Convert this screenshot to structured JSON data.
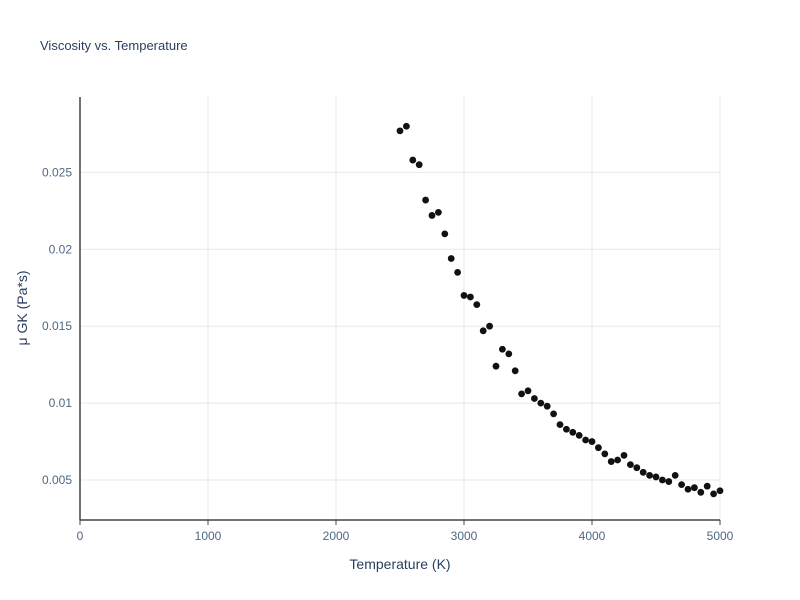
{
  "chart_data": {
    "type": "scatter",
    "title": "Viscosity vs. Temperature",
    "xlabel": "Temperature (K)",
    "ylabel": "μ GK (Pa*s)",
    "xlim": [
      0,
      5000
    ],
    "ylim": [
      0.0024,
      0.0299
    ],
    "x_ticks": [
      0,
      1000,
      2000,
      3000,
      4000,
      5000
    ],
    "x_tick_labels": [
      "0",
      "1000",
      "2000",
      "3000",
      "4000",
      "5000"
    ],
    "y_ticks": [
      0.005,
      0.01,
      0.015,
      0.02,
      0.025
    ],
    "y_tick_labels": [
      "0.005",
      "0.01",
      "0.015",
      "0.02",
      "0.025"
    ],
    "grid": true,
    "legend": "none",
    "marker_color": "#111111",
    "points": [
      [
        2500,
        0.0277
      ],
      [
        2550,
        0.028
      ],
      [
        2600,
        0.0258
      ],
      [
        2650,
        0.0255
      ],
      [
        2700,
        0.0232
      ],
      [
        2750,
        0.0222
      ],
      [
        2800,
        0.0224
      ],
      [
        2850,
        0.021
      ],
      [
        2900,
        0.0194
      ],
      [
        2950,
        0.0185
      ],
      [
        3000,
        0.017
      ],
      [
        3050,
        0.0169
      ],
      [
        3100,
        0.0164
      ],
      [
        3150,
        0.0147
      ],
      [
        3200,
        0.015
      ],
      [
        3250,
        0.0124
      ],
      [
        3300,
        0.0135
      ],
      [
        3350,
        0.0132
      ],
      [
        3400,
        0.0121
      ],
      [
        3450,
        0.0106
      ],
      [
        3500,
        0.0108
      ],
      [
        3550,
        0.0103
      ],
      [
        3600,
        0.01
      ],
      [
        3650,
        0.0098
      ],
      [
        3700,
        0.0093
      ],
      [
        3750,
        0.0086
      ],
      [
        3800,
        0.0083
      ],
      [
        3850,
        0.0081
      ],
      [
        3900,
        0.0079
      ],
      [
        3950,
        0.0076
      ],
      [
        4000,
        0.0075
      ],
      [
        4050,
        0.0071
      ],
      [
        4100,
        0.0067
      ],
      [
        4150,
        0.0062
      ],
      [
        4200,
        0.0063
      ],
      [
        4250,
        0.0066
      ],
      [
        4300,
        0.006
      ],
      [
        4350,
        0.0058
      ],
      [
        4400,
        0.0055
      ],
      [
        4450,
        0.0053
      ],
      [
        4500,
        0.0052
      ],
      [
        4550,
        0.005
      ],
      [
        4600,
        0.0049
      ],
      [
        4650,
        0.0053
      ],
      [
        4700,
        0.0047
      ],
      [
        4750,
        0.0044
      ],
      [
        4800,
        0.0045
      ],
      [
        4850,
        0.0042
      ],
      [
        4900,
        0.0046
      ],
      [
        4950,
        0.0041
      ],
      [
        5000,
        0.0043
      ]
    ]
  },
  "colors": {
    "title": "#2a3f5f",
    "axis_label": "#2a3f5f",
    "tick_label": "#506784",
    "gridline": "#e8e8e8",
    "axis_line": "#444444",
    "marker": "#111111",
    "background": "#ffffff"
  }
}
